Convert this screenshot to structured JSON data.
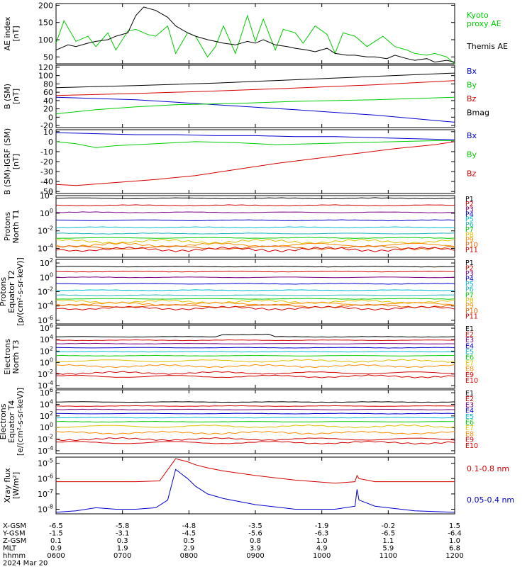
{
  "colors": {
    "black": "#000000",
    "red": "#d40000",
    "green": "#00cc00",
    "blue": "#0000cc",
    "purple": "#7a0080",
    "cyan": "#00bcd4",
    "teal": "#1fb5b5",
    "yellow": "#e0c000",
    "orange": "#ff8c00",
    "darkorange": "#e06000"
  },
  "chart_data": [
    {
      "id": "ae",
      "type": "line",
      "ylabel_lines": [
        "AE index",
        "[nT]"
      ],
      "yticks": [
        "200",
        "150",
        "100",
        "50"
      ],
      "ylim": [
        30,
        205
      ],
      "log": false,
      "series": [
        {
          "name": "Kyoto proxy AE",
          "color": "#00cc00",
          "x": [
            0,
            0.02,
            0.05,
            0.08,
            0.1,
            0.13,
            0.15,
            0.18,
            0.2,
            0.23,
            0.25,
            0.28,
            0.3,
            0.33,
            0.35,
            0.38,
            0.4,
            0.42,
            0.45,
            0.48,
            0.5,
            0.52,
            0.55,
            0.57,
            0.6,
            0.62,
            0.65,
            0.68,
            0.7,
            0.72,
            0.75,
            0.78,
            0.8,
            0.82,
            0.85,
            0.88,
            0.9,
            0.93,
            0.95,
            0.98,
            1.0
          ],
          "y": [
            90,
            155,
            95,
            110,
            80,
            120,
            70,
            125,
            130,
            115,
            110,
            140,
            60,
            120,
            110,
            50,
            80,
            140,
            60,
            170,
            95,
            160,
            70,
            130,
            120,
            90,
            140,
            115,
            60,
            120,
            110,
            80,
            95,
            110,
            80,
            70,
            60,
            55,
            60,
            50,
            30
          ]
        },
        {
          "name": "Themis AE",
          "color": "#000000",
          "x": [
            0,
            0.03,
            0.05,
            0.08,
            0.1,
            0.13,
            0.15,
            0.18,
            0.2,
            0.22,
            0.25,
            0.28,
            0.3,
            0.33,
            0.35,
            0.38,
            0.4,
            0.42,
            0.45,
            0.48,
            0.5,
            0.52,
            0.55,
            0.58,
            0.6,
            0.63,
            0.65,
            0.68,
            0.7,
            0.73,
            0.75,
            0.78,
            0.8,
            0.83,
            0.85,
            0.88,
            0.9,
            0.93,
            0.95,
            0.98,
            1.0
          ],
          "y": [
            70,
            85,
            80,
            90,
            95,
            100,
            110,
            120,
            170,
            195,
            185,
            165,
            140,
            120,
            110,
            100,
            95,
            90,
            85,
            95,
            90,
            100,
            85,
            80,
            75,
            70,
            65,
            75,
            60,
            55,
            55,
            50,
            50,
            45,
            55,
            45,
            40,
            45,
            35,
            40,
            35
          ]
        }
      ],
      "legend": [
        {
          "lines": [
            "Kyoto",
            "proxy AE"
          ],
          "color": "#00cc00"
        },
        {
          "lines": [
            "Themis AE"
          ],
          "color": "#000000"
        }
      ]
    },
    {
      "id": "bsm",
      "type": "line",
      "ylabel_lines": [
        "B (SM)",
        "[nT]"
      ],
      "yticks": [
        "120",
        "100",
        "80",
        "60",
        "40",
        "20",
        "0",
        "-20"
      ],
      "ylim": [
        -25,
        125
      ],
      "log": false,
      "series": [
        {
          "name": "Bx",
          "color": "#0000cc",
          "x": [
            0,
            0.2,
            0.4,
            0.6,
            0.8,
            1.0
          ],
          "y": [
            48,
            42,
            30,
            18,
            5,
            -12
          ]
        },
        {
          "name": "By",
          "color": "#00cc00",
          "x": [
            0,
            0.1,
            0.2,
            0.3,
            0.45,
            0.6,
            0.8,
            1.0
          ],
          "y": [
            8,
            18,
            25,
            30,
            33,
            38,
            42,
            48
          ]
        },
        {
          "name": "Bz",
          "color": "#d40000",
          "x": [
            0,
            0.2,
            0.4,
            0.6,
            0.8,
            1.0
          ],
          "y": [
            52,
            57,
            63,
            70,
            78,
            88
          ]
        },
        {
          "name": "Bmag",
          "color": "#000000",
          "x": [
            0,
            0.2,
            0.4,
            0.6,
            0.8,
            1.0
          ],
          "y": [
            71,
            76,
            82,
            90,
            98,
            106
          ]
        }
      ],
      "legend": [
        {
          "lines": [
            "Bx"
          ],
          "color": "#0000cc"
        },
        {
          "lines": [
            "By"
          ],
          "color": "#00cc00"
        },
        {
          "lines": [
            "Bz"
          ],
          "color": "#d40000"
        },
        {
          "lines": [
            "Bmag"
          ],
          "color": "#000000"
        }
      ]
    },
    {
      "id": "bigrf",
      "type": "line",
      "ylabel_lines": [
        "B (SM)-IGRF (SM)",
        "[nT]"
      ],
      "yticks": [
        "10",
        "0",
        "-10",
        "-20",
        "-30",
        "-40",
        "-50"
      ],
      "ylim": [
        -52,
        12
      ],
      "log": false,
      "series": [
        {
          "name": "Bx",
          "color": "#0000cc",
          "x": [
            0,
            0.1,
            0.2,
            0.3,
            0.4,
            0.5,
            0.6,
            0.7,
            0.8,
            0.9,
            1.0
          ],
          "y": [
            9,
            8,
            7,
            7,
            6,
            6,
            5,
            5,
            4,
            3,
            2
          ]
        },
        {
          "name": "By",
          "color": "#00cc00",
          "x": [
            0,
            0.05,
            0.1,
            0.15,
            0.25,
            0.35,
            0.45,
            0.55,
            0.65,
            0.75,
            0.85,
            0.95,
            1.0
          ],
          "y": [
            0,
            -2,
            -6,
            -4,
            -2,
            0,
            -1,
            -3,
            -2,
            -1,
            0,
            1,
            1
          ]
        },
        {
          "name": "Bz",
          "color": "#d40000",
          "x": [
            0,
            0.05,
            0.15,
            0.25,
            0.35,
            0.45,
            0.55,
            0.65,
            0.75,
            0.85,
            0.95,
            1.0
          ],
          "y": [
            -43,
            -44,
            -41,
            -38,
            -34,
            -28,
            -22,
            -17,
            -12,
            -7,
            -3,
            0
          ]
        }
      ],
      "legend": [
        {
          "lines": [
            "Bx"
          ],
          "color": "#0000cc"
        },
        {
          "lines": [
            "By"
          ],
          "color": "#00cc00"
        },
        {
          "lines": [
            "Bz"
          ],
          "color": "#d40000"
        }
      ]
    },
    {
      "id": "pn1",
      "type": "line",
      "ylabel_lines": [
        "Protons",
        "North T1"
      ],
      "yticks": [
        "10^2",
        "10^0",
        "10^-2",
        "10^-4"
      ],
      "ylim": [
        -5,
        2
      ],
      "log": true,
      "series": [
        {
          "name": "P1",
          "color": "#000000",
          "base": 1.7
        },
        {
          "name": "P2",
          "color": "#d40000",
          "base": 0.9
        },
        {
          "name": "P3",
          "color": "#7a0080",
          "base": 0.1
        },
        {
          "name": "P4",
          "color": "#0000cc",
          "base": -0.8
        },
        {
          "name": "P5",
          "color": "#00bcd4",
          "base": -1.6
        },
        {
          "name": "P6",
          "color": "#1fb5b5",
          "base": -2.3
        },
        {
          "name": "P7",
          "color": "#00cc00",
          "base": -2.8
        },
        {
          "name": "P8",
          "color": "#e0c000",
          "base": -3.2
        },
        {
          "name": "P9",
          "color": "#ff8c00",
          "base": -3.6
        },
        {
          "name": "P10",
          "color": "#e06000",
          "base": -3.9
        },
        {
          "name": "P11",
          "color": "#d40000",
          "base": -4.1
        }
      ]
    },
    {
      "id": "pe2",
      "type": "line",
      "ylabel_lines": [
        "Protons",
        "Equator T2",
        "[p/(cm^2-s-sr-keV)]"
      ],
      "yticks": [
        "10^2",
        "10^0",
        "10^-2",
        "10^-4",
        "10^-6"
      ],
      "ylim": [
        -6.5,
        2.5
      ],
      "log": true,
      "series": [
        {
          "name": "P1",
          "color": "#000000",
          "base": 1.5
        },
        {
          "name": "P2",
          "color": "#d40000",
          "base": 0.8
        },
        {
          "name": "P3",
          "color": "#7a0080",
          "base": 0.0
        },
        {
          "name": "P4",
          "color": "#0000cc",
          "base": -0.9
        },
        {
          "name": "P5",
          "color": "#00bcd4",
          "base": -1.8
        },
        {
          "name": "P6",
          "color": "#1fb5b5",
          "base": -2.5
        },
        {
          "name": "P7",
          "color": "#00cc00",
          "base": -3.0
        },
        {
          "name": "P8",
          "color": "#e0c000",
          "base": -3.4
        },
        {
          "name": "P9",
          "color": "#ff8c00",
          "base": -3.7
        },
        {
          "name": "P10",
          "color": "#e06000",
          "base": -4.0
        },
        {
          "name": "P11",
          "color": "#d40000",
          "base": -4.3
        }
      ]
    },
    {
      "id": "en3",
      "type": "line",
      "ylabel_lines": [
        "Electrons",
        "North T3"
      ],
      "yticks": [
        "10^6",
        "10^4",
        "10^2",
        "10^0",
        "10^-2",
        "10^-4"
      ],
      "ylim": [
        -4.5,
        6.5
      ],
      "log": true,
      "series": [
        {
          "name": "E1",
          "color": "#000000",
          "base": 4.5
        },
        {
          "name": "E2",
          "color": "#d40000",
          "base": 3.9
        },
        {
          "name": "E3",
          "color": "#7a0080",
          "base": 3.3
        },
        {
          "name": "E4",
          "color": "#0000cc",
          "base": 2.6
        },
        {
          "name": "E5",
          "color": "#00bcd4",
          "base": 1.9
        },
        {
          "name": "E6",
          "color": "#00cc00",
          "base": 1.2
        },
        {
          "name": "E7",
          "color": "#e0c000",
          "base": 0.3
        },
        {
          "name": "E8",
          "color": "#ff8c00",
          "base": -0.6
        },
        {
          "name": "E9",
          "color": "#d40000",
          "base": -1.8
        },
        {
          "name": "E10",
          "color": "#d40000",
          "base": -2.4
        }
      ]
    },
    {
      "id": "ee4",
      "type": "line",
      "ylabel_lines": [
        "Electrons",
        "Equator T4",
        "[e/(cm^2-s-sr-keV)]"
      ],
      "yticks": [
        "10^6",
        "10^4",
        "10^2",
        "10^0",
        "10^-2",
        "10^-4"
      ],
      "ylim": [
        -4.5,
        6.5
      ],
      "log": true,
      "series": [
        {
          "name": "E1",
          "color": "#000000",
          "base": 4.4
        },
        {
          "name": "E2",
          "color": "#d40000",
          "base": 3.7
        },
        {
          "name": "E3",
          "color": "#7a0080",
          "base": 3.1
        },
        {
          "name": "E4",
          "color": "#0000cc",
          "base": 2.4
        },
        {
          "name": "E5",
          "color": "#00bcd4",
          "base": 1.7
        },
        {
          "name": "E6",
          "color": "#00cc00",
          "base": 1.0
        },
        {
          "name": "E7",
          "color": "#e0c000",
          "base": 0.2
        },
        {
          "name": "E8",
          "color": "#ff8c00",
          "base": -0.9
        },
        {
          "name": "E9",
          "color": "#d40000",
          "base": -2.0
        },
        {
          "name": "E10",
          "color": "#d40000",
          "base": -2.6
        }
      ]
    },
    {
      "id": "xray",
      "type": "line",
      "ylabel_lines": [
        "Xray flux",
        "[W/m^2]"
      ],
      "yticks": [
        "10^-5",
        "10^-6",
        "10^-7",
        "10^-8"
      ],
      "ylim": [
        -8.3,
        -4.6
      ],
      "log": true,
      "series": [
        {
          "name": "0.1-0.8 nm",
          "color": "#d40000",
          "x": [
            0,
            0.1,
            0.2,
            0.26,
            0.3,
            0.33,
            0.35,
            0.38,
            0.42,
            0.5,
            0.6,
            0.7,
            0.75,
            0.755,
            0.76,
            0.8,
            0.9,
            1.0
          ],
          "y": [
            -6.2,
            -6.2,
            -6.2,
            -6.15,
            -4.7,
            -4.9,
            -5.1,
            -5.3,
            -5.5,
            -5.8,
            -6.1,
            -6.3,
            -6.2,
            -5.8,
            -6.0,
            -6.2,
            -6.2,
            -6.2
          ]
        },
        {
          "name": "0.05-0.4 nm",
          "color": "#0000cc",
          "x": [
            0,
            0.05,
            0.1,
            0.15,
            0.2,
            0.25,
            0.28,
            0.3,
            0.33,
            0.35,
            0.38,
            0.42,
            0.5,
            0.6,
            0.7,
            0.75,
            0.755,
            0.76,
            0.8,
            0.9,
            1.0
          ],
          "y": [
            -8.2,
            -8.1,
            -7.9,
            -8.0,
            -8.0,
            -7.9,
            -7.4,
            -5.4,
            -6.0,
            -6.5,
            -7.0,
            -7.3,
            -7.7,
            -8.0,
            -8.0,
            -7.8,
            -6.7,
            -7.4,
            -7.8,
            -8.1,
            -8.2
          ]
        }
      ],
      "legend": [
        {
          "lines": [
            "0.1-0.8 nm"
          ],
          "color": "#d40000"
        },
        {
          "lines": [
            "0.05-0.4 nm"
          ],
          "color": "#0000cc"
        }
      ]
    }
  ],
  "ephemeris": {
    "row_labels": [
      "X-GSM",
      "Y-GSM",
      "Z-GSM",
      "MLT",
      "hhmm",
      "2024 Mar 20"
    ],
    "columns": [
      {
        "x_gsm": "-6.5",
        "y_gsm": "-1.5",
        "z_gsm": "0.1",
        "mlt": "0.9",
        "hhmm": "0600"
      },
      {
        "x_gsm": "-5.8",
        "y_gsm": "-3.1",
        "z_gsm": "0.3",
        "mlt": "1.9",
        "hhmm": "0700"
      },
      {
        "x_gsm": "-4.8",
        "y_gsm": "-4.5",
        "z_gsm": "0.5",
        "mlt": "2.9",
        "hhmm": "0800"
      },
      {
        "x_gsm": "-3.5",
        "y_gsm": "-5.6",
        "z_gsm": "0.8",
        "mlt": "3.9",
        "hhmm": "0900"
      },
      {
        "x_gsm": "-1.9",
        "y_gsm": "-6.3",
        "z_gsm": "1.0",
        "mlt": "4.9",
        "hhmm": "1000"
      },
      {
        "x_gsm": "-0.2",
        "y_gsm": "-6.5",
        "z_gsm": "1.1",
        "mlt": "5.9",
        "hhmm": "1100"
      },
      {
        "x_gsm": "1.5",
        "y_gsm": "-6.4",
        "z_gsm": "1.0",
        "mlt": "6.8",
        "hhmm": "1200"
      }
    ]
  }
}
